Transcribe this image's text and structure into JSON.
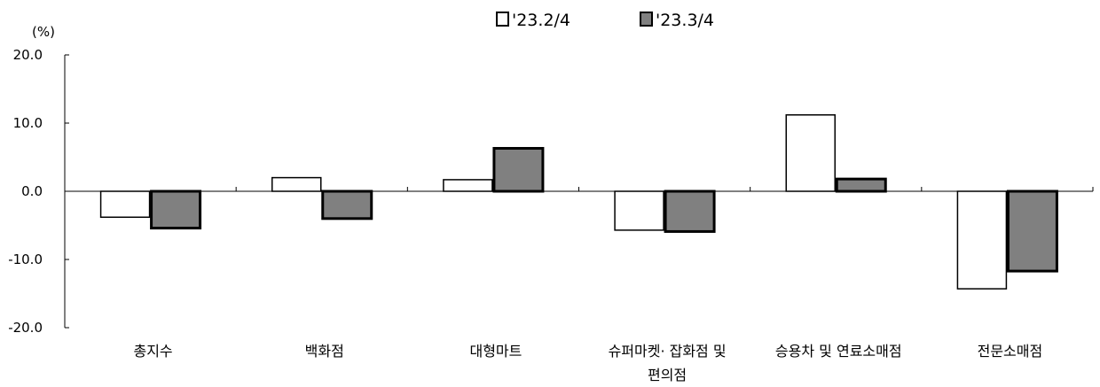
{
  "chart_data": {
    "type": "bar",
    "unit_label": "(%)",
    "categories": [
      [
        "총지수"
      ],
      [
        "백화점"
      ],
      [
        "대형마트"
      ],
      [
        "슈퍼마켓· 잡화점 및",
        "편의점"
      ],
      [
        "승용차 및 연료소매점"
      ],
      [
        "전문소매점"
      ]
    ],
    "series": [
      {
        "name": "'23.2/4",
        "values": [
          -3.8,
          2.0,
          1.7,
          -5.7,
          11.2,
          -14.3
        ],
        "color": "#ffffff"
      },
      {
        "name": "'23.3/4",
        "values": [
          -5.4,
          -4.0,
          6.3,
          -5.9,
          1.8,
          -11.7
        ],
        "color": "#808080"
      }
    ],
    "ylim": [
      -20,
      20
    ],
    "yticks": [
      20,
      10,
      0,
      -10,
      -20
    ],
    "ytick_labels": [
      "20.0",
      "10.0",
      "0.0",
      "-10.0",
      "-20.0"
    ],
    "legend_position": "top-center",
    "grid": false
  }
}
